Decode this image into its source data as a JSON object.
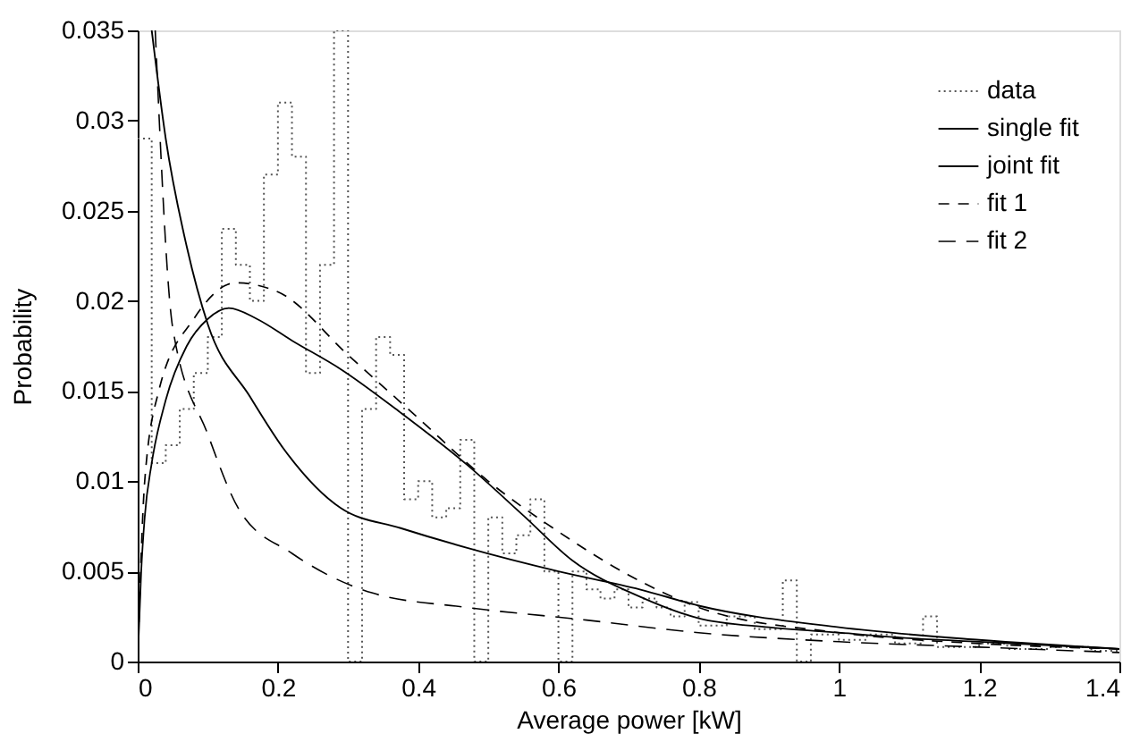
{
  "chart_data": {
    "type": "line",
    "xlabel": "Average power [kW]",
    "ylabel": "Probability",
    "xlim": [
      0,
      1.4
    ],
    "xticks": [
      0,
      0.2,
      0.4,
      0.6,
      0.8,
      1,
      1.2,
      1.4
    ],
    "ylim": [
      0,
      0.035
    ],
    "yticks": [
      0,
      0.005,
      0.01,
      0.015,
      0.02,
      0.025,
      0.03,
      0.035
    ],
    "grid": false,
    "legend": "top right",
    "series": [
      {
        "name": "data",
        "type": "step",
        "color": "#555555",
        "line_style": "dotted",
        "x": [
          0,
          0.02,
          0.04,
          0.06,
          0.08,
          0.1,
          0.12,
          0.14,
          0.16,
          0.18,
          0.2,
          0.22,
          0.24,
          0.26,
          0.28,
          0.3,
          0.32,
          0.34,
          0.36,
          0.38,
          0.4,
          0.42,
          0.44,
          0.46,
          0.48,
          0.5,
          0.52,
          0.54,
          0.56,
          0.58,
          0.6,
          0.62,
          0.64,
          0.66,
          0.68,
          0.7,
          0.72,
          0.74,
          0.76,
          0.78,
          0.8,
          0.84,
          0.88,
          0.92,
          0.94,
          0.96,
          1.0,
          1.04,
          1.08,
          1.12,
          1.14,
          1.2,
          1.24,
          1.3,
          1.36,
          1.4
        ],
        "values": [
          0.029,
          0.011,
          0.012,
          0.014,
          0.016,
          0.018,
          0.024,
          0.022,
          0.02,
          0.027,
          0.031,
          0.028,
          0.016,
          0.022,
          0.035,
          0,
          0.014,
          0.018,
          0.017,
          0.009,
          0.01,
          0.008,
          0.0085,
          0.0123,
          0,
          0.008,
          0.006,
          0.007,
          0.009,
          0.005,
          0,
          0.005,
          0.004,
          0.0035,
          0.004,
          0.003,
          0.0035,
          0.003,
          0.0025,
          0.0033,
          0.002,
          0.0025,
          0.0018,
          0.0045,
          0,
          0.0015,
          0.0012,
          0.0015,
          0.001,
          0.0025,
          0.0008,
          0.001,
          0.0007,
          0.0008,
          0.0006,
          0.0006
        ]
      },
      {
        "name": "single fit",
        "color": "#000000",
        "line_style": "solid",
        "x": [
          0.02,
          0.04,
          0.07,
          0.1,
          0.16,
          0.21,
          0.29,
          0.375,
          0.47,
          0.6,
          0.716,
          0.8,
          1.0,
          1.2,
          1.4
        ],
        "values": [
          0.035,
          0.029,
          0.023,
          0.0187,
          0.0147,
          0.0117,
          0.0085,
          0.0074,
          0.0063,
          0.005,
          0.004,
          0.0031,
          0.0019,
          0.0012,
          0.0007
        ]
      },
      {
        "name": "joint fit",
        "color": "#000000",
        "line_style": "solid",
        "x": [
          0,
          0.005,
          0.01,
          0.02,
          0.04,
          0.07,
          0.1,
          0.13,
          0.17,
          0.22,
          0.29,
          0.375,
          0.47,
          0.55,
          0.62,
          0.716,
          0.8,
          0.9,
          1.0,
          1.1,
          1.2,
          1.3,
          1.4
        ],
        "values": [
          0,
          0.005,
          0.008,
          0.011,
          0.0145,
          0.0175,
          0.019,
          0.0196,
          0.019,
          0.0178,
          0.0162,
          0.0138,
          0.0109,
          0.0081,
          0.0056,
          0.0036,
          0.0024,
          0.0019,
          0.0016,
          0.0013,
          0.0011,
          0.0009,
          0.0007
        ]
      },
      {
        "name": "fit 1",
        "color": "#000000",
        "line_style": "dashed",
        "x": [
          0,
          0.01,
          0.03,
          0.08,
          0.14,
          0.2,
          0.3,
          0.4,
          0.5,
          0.6,
          0.7,
          0.8,
          1.0,
          1.2,
          1.4
        ],
        "values": [
          0,
          0.01,
          0.015,
          0.019,
          0.021,
          0.0205,
          0.017,
          0.0135,
          0.01,
          0.0072,
          0.0048,
          0.003,
          0.0016,
          0.001,
          0.0007
        ]
      },
      {
        "name": "fit 2",
        "color": "#000000",
        "line_style": "dashed",
        "x": [
          0.025,
          0.05,
          0.1,
          0.145,
          0.22,
          0.335,
          0.47,
          0.64,
          0.8,
          1.0,
          1.2,
          1.4
        ],
        "values": [
          0.035,
          0.0185,
          0.0126,
          0.0084,
          0.006,
          0.0038,
          0.003,
          0.0023,
          0.0016,
          0.0011,
          0.0008,
          0.0005
        ]
      }
    ]
  }
}
